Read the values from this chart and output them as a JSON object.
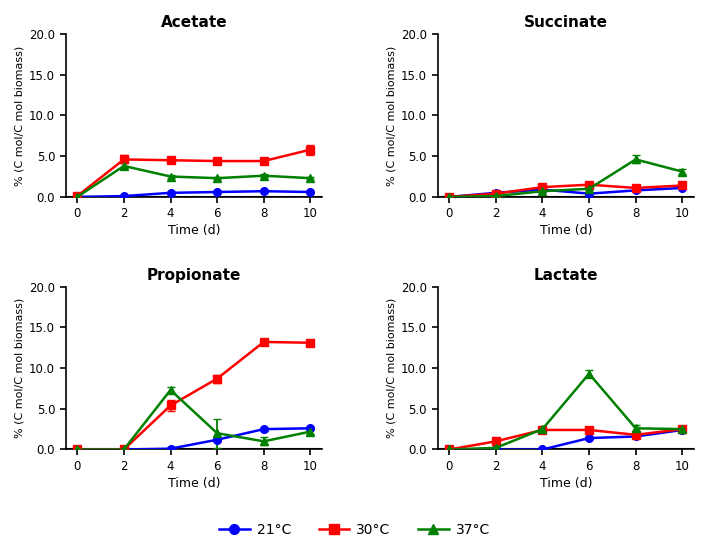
{
  "time": [
    0,
    2,
    4,
    6,
    8,
    10
  ],
  "acetate": {
    "21": {
      "y": [
        0.0,
        0.1,
        0.5,
        0.6,
        0.7,
        0.6
      ],
      "yerr": [
        0.05,
        0.05,
        0.1,
        0.1,
        0.1,
        0.1
      ]
    },
    "30": {
      "y": [
        0.1,
        4.6,
        4.5,
        4.4,
        4.4,
        5.8
      ],
      "yerr": [
        0.05,
        0.5,
        0.3,
        0.3,
        0.3,
        0.6
      ]
    },
    "37": {
      "y": [
        0.0,
        3.8,
        2.5,
        2.3,
        2.6,
        2.3
      ],
      "yerr": [
        0.05,
        0.3,
        0.2,
        0.15,
        0.2,
        0.15
      ]
    }
  },
  "succinate": {
    "21": {
      "y": [
        0.0,
        0.5,
        0.9,
        0.4,
        0.8,
        1.1
      ],
      "yerr": [
        0.05,
        0.1,
        0.12,
        0.1,
        0.1,
        0.12
      ]
    },
    "30": {
      "y": [
        0.0,
        0.4,
        1.2,
        1.5,
        1.1,
        1.4
      ],
      "yerr": [
        0.05,
        0.1,
        0.15,
        0.15,
        0.12,
        0.12
      ]
    },
    "37": {
      "y": [
        0.0,
        0.1,
        0.7,
        1.0,
        4.6,
        3.1
      ],
      "yerr": [
        0.05,
        0.05,
        0.1,
        0.12,
        0.5,
        0.3
      ]
    }
  },
  "propionate": {
    "21": {
      "y": [
        0.0,
        0.0,
        0.1,
        1.2,
        2.5,
        2.6
      ],
      "yerr": [
        0.03,
        0.03,
        0.08,
        0.18,
        0.18,
        0.18
      ]
    },
    "30": {
      "y": [
        0.0,
        0.0,
        5.4,
        8.7,
        13.2,
        13.1
      ],
      "yerr": [
        0.03,
        0.03,
        0.7,
        0.5,
        0.35,
        0.35
      ]
    },
    "37": {
      "y": [
        0.0,
        0.0,
        7.3,
        2.0,
        1.0,
        2.2
      ],
      "yerr": [
        0.03,
        0.03,
        0.35,
        1.8,
        0.5,
        0.35
      ]
    }
  },
  "lactate": {
    "21": {
      "y": [
        0.0,
        0.0,
        0.0,
        1.4,
        1.6,
        2.4
      ],
      "yerr": [
        0.03,
        0.03,
        0.03,
        0.12,
        0.18,
        0.18
      ]
    },
    "30": {
      "y": [
        0.0,
        1.0,
        2.4,
        2.4,
        1.8,
        2.5
      ],
      "yerr": [
        0.03,
        0.1,
        0.25,
        0.25,
        0.18,
        0.25
      ]
    },
    "37": {
      "y": [
        0.0,
        0.2,
        2.5,
        9.3,
        2.6,
        2.5
      ],
      "yerr": [
        0.03,
        0.1,
        0.25,
        0.45,
        0.45,
        0.35
      ]
    }
  },
  "colors": {
    "21": "#0000FF",
    "30": "#FF0000",
    "37": "#008000"
  },
  "titles": [
    "Acetate",
    "Succinate",
    "Propionate",
    "Lactate"
  ],
  "ylabel": "% (C mol/C mol biomass)",
  "xlabel": "Time (d)",
  "ylim": [
    0.0,
    20.0
  ],
  "yticks": [
    0.0,
    5.0,
    10.0,
    15.0,
    20.0
  ],
  "xticks": [
    0,
    2,
    4,
    6,
    8,
    10
  ],
  "legend_labels": [
    "21°C",
    "30°C",
    "37°C"
  ]
}
